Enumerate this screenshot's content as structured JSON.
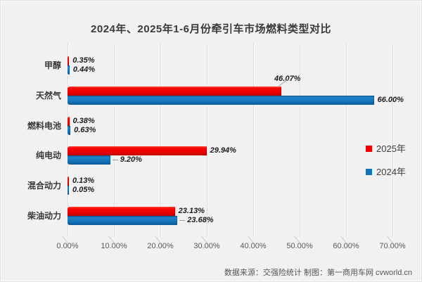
{
  "title": "2024年、2025年1-6月份牵引车市场燃料类型对比",
  "footer": "数据来源：交强险统计  制图：第一商用车网 cvworld.cn",
  "legend": {
    "items": [
      {
        "label": "2025年",
        "color": "#ee0000"
      },
      {
        "label": "2024年",
        "color": "#1473b8"
      }
    ]
  },
  "chart_data": {
    "type": "bar",
    "orientation": "horizontal",
    "title": "2024年、2025年1-6月份牵引车市场燃料类型对比",
    "categories": [
      "甲醇",
      "天然气",
      "燃料电池",
      "纯电动",
      "混合动力",
      "柴油动力"
    ],
    "series": [
      {
        "name": "2025年",
        "color": "#ee0000",
        "values": [
          0.35,
          46.07,
          0.38,
          29.94,
          0.13,
          23.13
        ],
        "labels": [
          "0.35%",
          "46.07%",
          "0.38%",
          "29.94%",
          "0.13%",
          "23.13%"
        ],
        "callout_points": [
          1
        ]
      },
      {
        "name": "2024年",
        "color": "#1473b8",
        "values": [
          0.44,
          66.0,
          0.63,
          9.2,
          0.05,
          23.68
        ],
        "labels": [
          "0.44%",
          "66.00%",
          "0.63%",
          "9.20%",
          "0.05%",
          "23.68%"
        ],
        "leader_points": [
          3,
          5
        ]
      }
    ],
    "x_ticks": [
      "0.00%",
      "10.00%",
      "20.00%",
      "30.00%",
      "40.00%",
      "50.00%",
      "60.00%",
      "70.00%"
    ],
    "xlim": [
      0,
      70
    ],
    "grid": "vertical",
    "legend_position": "middle-right",
    "background": "#f1f1f1",
    "bar_3d": true
  }
}
